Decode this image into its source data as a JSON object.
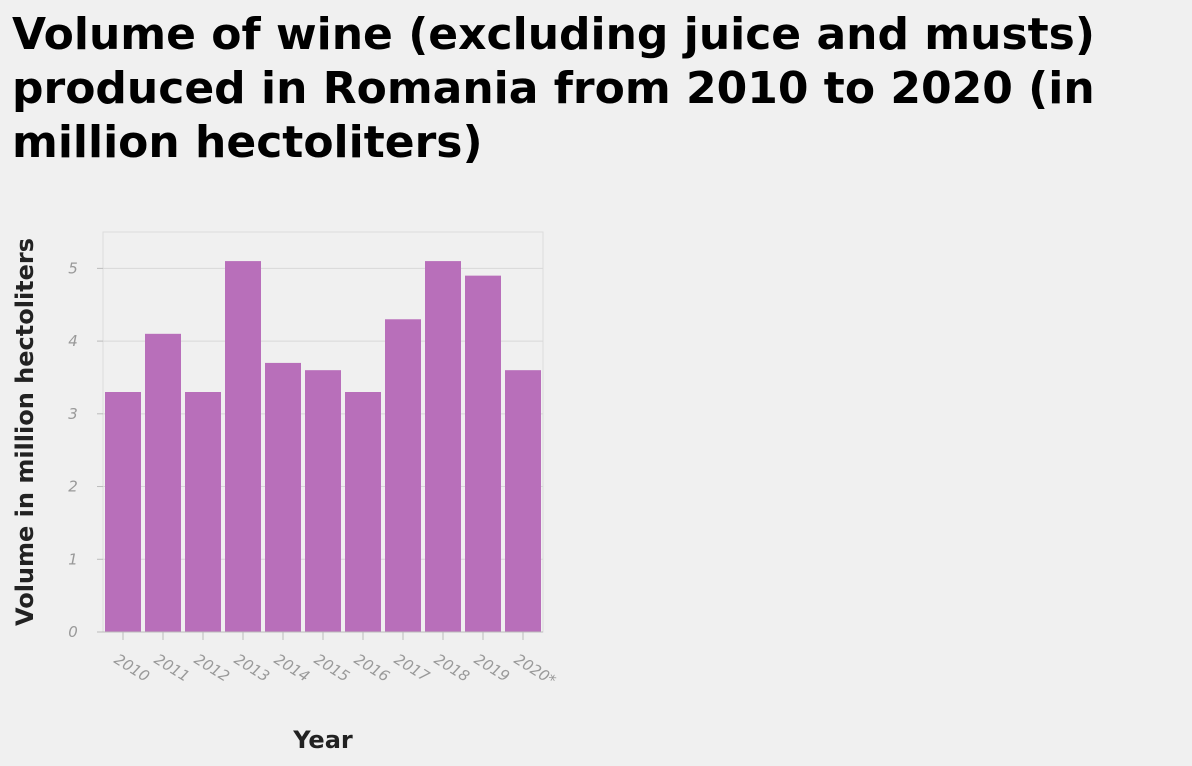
{
  "chart_data": {
    "type": "bar",
    "title": "Volume of wine (excluding juice and musts) produced in Romania from 2010 to 2020 (in million hectoliters)",
    "xlabel": "Year",
    "ylabel": "Volume in million hectoliters",
    "categories": [
      "2010",
      "2011",
      "2012",
      "2013",
      "2014",
      "2015",
      "2016",
      "2017",
      "2018",
      "2019",
      "2020*"
    ],
    "values": [
      3.3,
      4.1,
      3.3,
      5.1,
      3.7,
      3.6,
      3.3,
      4.3,
      5.1,
      4.9,
      3.6
    ],
    "ylim": [
      0,
      5.5
    ],
    "yticks": [
      "0",
      "1",
      "2",
      "3",
      "4",
      "5"
    ],
    "grid": true,
    "bar_color": "#b86fba"
  }
}
